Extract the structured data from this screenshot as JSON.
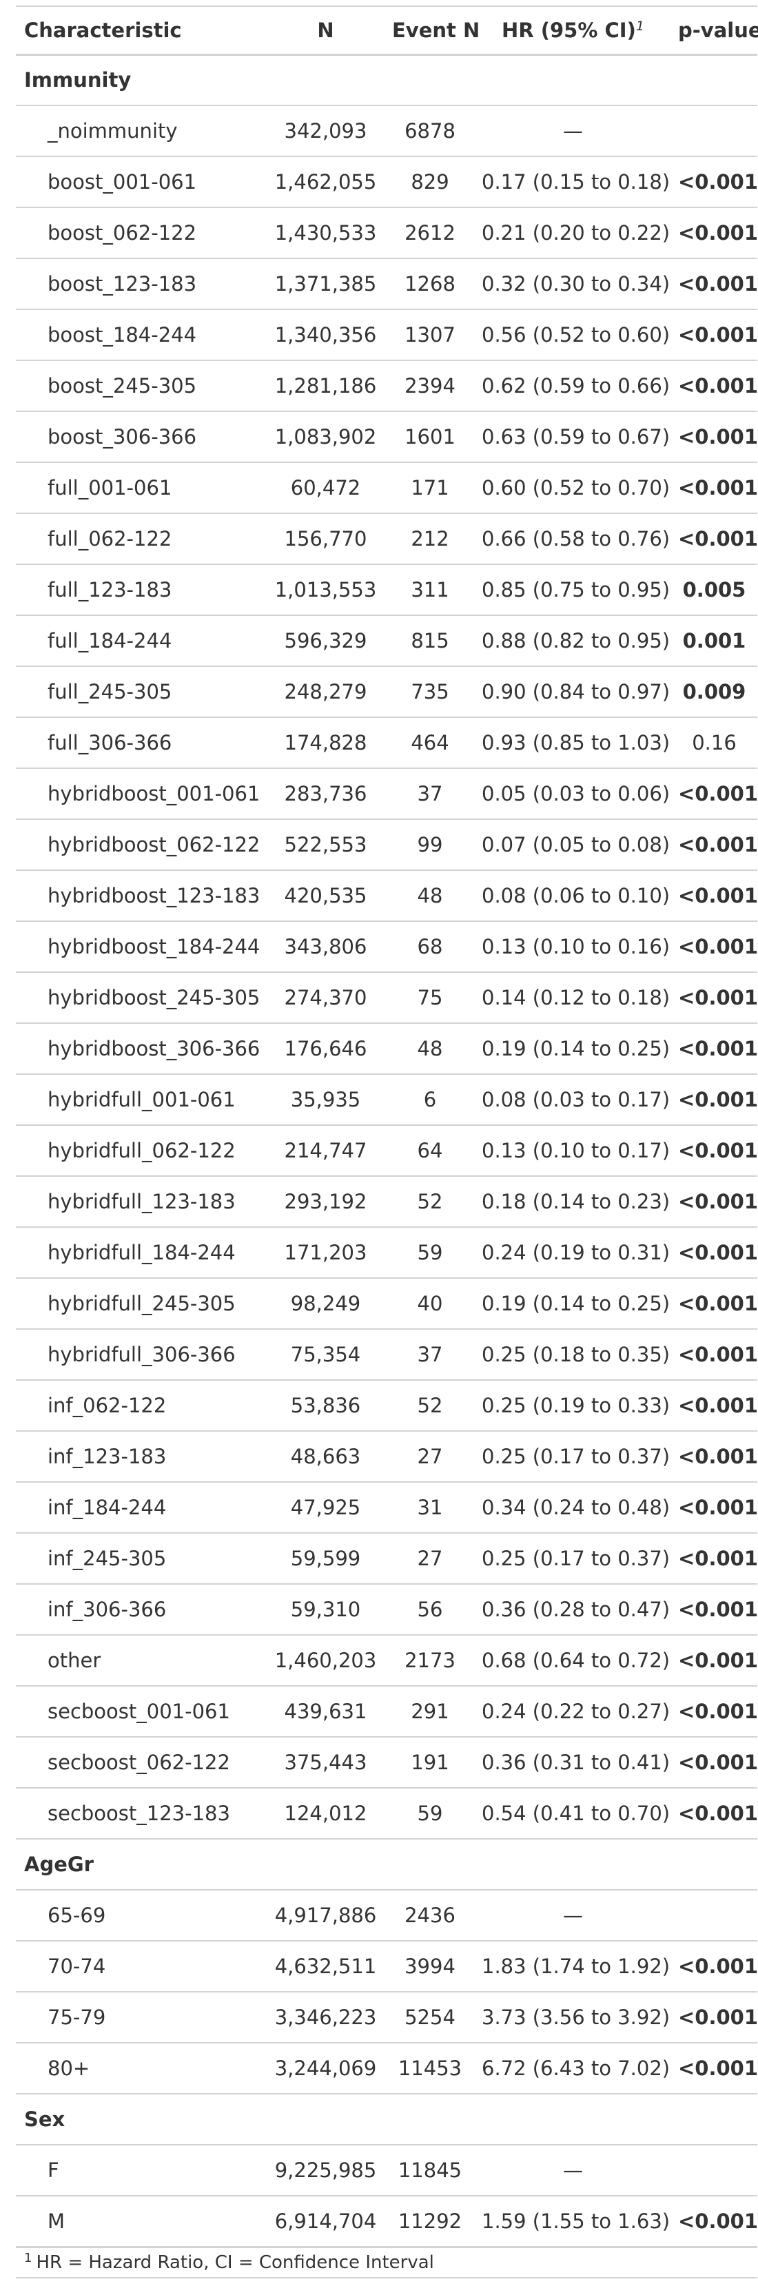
{
  "header": {
    "characteristic": "Characteristic",
    "n": "N",
    "event_n": "Event N",
    "hr": "HR (95% CI)",
    "hr_footnote_mark": "1",
    "p_value": "p-value"
  },
  "groups": [
    {
      "label": "Immunity",
      "rows": [
        {
          "label": "_noimmunity",
          "n": "342,093",
          "event_n": "6878",
          "hr": "—",
          "p": "",
          "sig": false
        },
        {
          "label": "boost_001-061",
          "n": "1,462,055",
          "event_n": "829",
          "hr": "0.17 (0.15 to 0.18)",
          "p": "<0.001",
          "sig": true
        },
        {
          "label": "boost_062-122",
          "n": "1,430,533",
          "event_n": "2612",
          "hr": "0.21 (0.20 to 0.22)",
          "p": "<0.001",
          "sig": true
        },
        {
          "label": "boost_123-183",
          "n": "1,371,385",
          "event_n": "1268",
          "hr": "0.32 (0.30 to 0.34)",
          "p": "<0.001",
          "sig": true
        },
        {
          "label": "boost_184-244",
          "n": "1,340,356",
          "event_n": "1307",
          "hr": "0.56 (0.52 to 0.60)",
          "p": "<0.001",
          "sig": true
        },
        {
          "label": "boost_245-305",
          "n": "1,281,186",
          "event_n": "2394",
          "hr": "0.62 (0.59 to 0.66)",
          "p": "<0.001",
          "sig": true
        },
        {
          "label": "boost_306-366",
          "n": "1,083,902",
          "event_n": "1601",
          "hr": "0.63 (0.59 to 0.67)",
          "p": "<0.001",
          "sig": true
        },
        {
          "label": "full_001-061",
          "n": "60,472",
          "event_n": "171",
          "hr": "0.60 (0.52 to 0.70)",
          "p": "<0.001",
          "sig": true
        },
        {
          "label": "full_062-122",
          "n": "156,770",
          "event_n": "212",
          "hr": "0.66 (0.58 to 0.76)",
          "p": "<0.001",
          "sig": true
        },
        {
          "label": "full_123-183",
          "n": "1,013,553",
          "event_n": "311",
          "hr": "0.85 (0.75 to 0.95)",
          "p": "0.005",
          "sig": true
        },
        {
          "label": "full_184-244",
          "n": "596,329",
          "event_n": "815",
          "hr": "0.88 (0.82 to 0.95)",
          "p": "0.001",
          "sig": true
        },
        {
          "label": "full_245-305",
          "n": "248,279",
          "event_n": "735",
          "hr": "0.90 (0.84 to 0.97)",
          "p": "0.009",
          "sig": true
        },
        {
          "label": "full_306-366",
          "n": "174,828",
          "event_n": "464",
          "hr": "0.93 (0.85 to 1.03)",
          "p": "0.16",
          "sig": false
        },
        {
          "label": "hybridboost_001-061",
          "n": "283,736",
          "event_n": "37",
          "hr": "0.05 (0.03 to 0.06)",
          "p": "<0.001",
          "sig": true
        },
        {
          "label": "hybridboost_062-122",
          "n": "522,553",
          "event_n": "99",
          "hr": "0.07 (0.05 to 0.08)",
          "p": "<0.001",
          "sig": true
        },
        {
          "label": "hybridboost_123-183",
          "n": "420,535",
          "event_n": "48",
          "hr": "0.08 (0.06 to 0.10)",
          "p": "<0.001",
          "sig": true
        },
        {
          "label": "hybridboost_184-244",
          "n": "343,806",
          "event_n": "68",
          "hr": "0.13 (0.10 to 0.16)",
          "p": "<0.001",
          "sig": true
        },
        {
          "label": "hybridboost_245-305",
          "n": "274,370",
          "event_n": "75",
          "hr": "0.14 (0.12 to 0.18)",
          "p": "<0.001",
          "sig": true
        },
        {
          "label": "hybridboost_306-366",
          "n": "176,646",
          "event_n": "48",
          "hr": "0.19 (0.14 to 0.25)",
          "p": "<0.001",
          "sig": true
        },
        {
          "label": "hybridfull_001-061",
          "n": "35,935",
          "event_n": "6",
          "hr": "0.08 (0.03 to 0.17)",
          "p": "<0.001",
          "sig": true
        },
        {
          "label": "hybridfull_062-122",
          "n": "214,747",
          "event_n": "64",
          "hr": "0.13 (0.10 to 0.17)",
          "p": "<0.001",
          "sig": true
        },
        {
          "label": "hybridfull_123-183",
          "n": "293,192",
          "event_n": "52",
          "hr": "0.18 (0.14 to 0.23)",
          "p": "<0.001",
          "sig": true
        },
        {
          "label": "hybridfull_184-244",
          "n": "171,203",
          "event_n": "59",
          "hr": "0.24 (0.19 to 0.31)",
          "p": "<0.001",
          "sig": true
        },
        {
          "label": "hybridfull_245-305",
          "n": "98,249",
          "event_n": "40",
          "hr": "0.19 (0.14 to 0.25)",
          "p": "<0.001",
          "sig": true
        },
        {
          "label": "hybridfull_306-366",
          "n": "75,354",
          "event_n": "37",
          "hr": "0.25 (0.18 to 0.35)",
          "p": "<0.001",
          "sig": true
        },
        {
          "label": "inf_062-122",
          "n": "53,836",
          "event_n": "52",
          "hr": "0.25 (0.19 to 0.33)",
          "p": "<0.001",
          "sig": true
        },
        {
          "label": "inf_123-183",
          "n": "48,663",
          "event_n": "27",
          "hr": "0.25 (0.17 to 0.37)",
          "p": "<0.001",
          "sig": true
        },
        {
          "label": "inf_184-244",
          "n": "47,925",
          "event_n": "31",
          "hr": "0.34 (0.24 to 0.48)",
          "p": "<0.001",
          "sig": true
        },
        {
          "label": "inf_245-305",
          "n": "59,599",
          "event_n": "27",
          "hr": "0.25 (0.17 to 0.37)",
          "p": "<0.001",
          "sig": true
        },
        {
          "label": "inf_306-366",
          "n": "59,310",
          "event_n": "56",
          "hr": "0.36 (0.28 to 0.47)",
          "p": "<0.001",
          "sig": true
        },
        {
          "label": "other",
          "n": "1,460,203",
          "event_n": "2173",
          "hr": "0.68 (0.64 to 0.72)",
          "p": "<0.001",
          "sig": true
        },
        {
          "label": "secboost_001-061",
          "n": "439,631",
          "event_n": "291",
          "hr": "0.24 (0.22 to 0.27)",
          "p": "<0.001",
          "sig": true
        },
        {
          "label": "secboost_062-122",
          "n": "375,443",
          "event_n": "191",
          "hr": "0.36 (0.31 to 0.41)",
          "p": "<0.001",
          "sig": true
        },
        {
          "label": "secboost_123-183",
          "n": "124,012",
          "event_n": "59",
          "hr": "0.54 (0.41 to 0.70)",
          "p": "<0.001",
          "sig": true
        }
      ]
    },
    {
      "label": "AgeGr",
      "rows": [
        {
          "label": "65-69",
          "n": "4,917,886",
          "event_n": "2436",
          "hr": "—",
          "p": "",
          "sig": false
        },
        {
          "label": "70-74",
          "n": "4,632,511",
          "event_n": "3994",
          "hr": "1.83 (1.74 to 1.92)",
          "p": "<0.001",
          "sig": true
        },
        {
          "label": "75-79",
          "n": "3,346,223",
          "event_n": "5254",
          "hr": "3.73 (3.56 to 3.92)",
          "p": "<0.001",
          "sig": true
        },
        {
          "label": "80+",
          "n": "3,244,069",
          "event_n": "11453",
          "hr": "6.72 (6.43 to 7.02)",
          "p": "<0.001",
          "sig": true
        }
      ]
    },
    {
      "label": "Sex",
      "rows": [
        {
          "label": "F",
          "n": "9,225,985",
          "event_n": "11845",
          "hr": "—",
          "p": "",
          "sig": false
        },
        {
          "label": "M",
          "n": "6,914,704",
          "event_n": "11292",
          "hr": "1.59 (1.55 to 1.63)",
          "p": "<0.001",
          "sig": true
        }
      ]
    }
  ],
  "footnote": {
    "mark": "1",
    "text": "HR = Hazard Ratio, CI = Confidence Interval"
  }
}
